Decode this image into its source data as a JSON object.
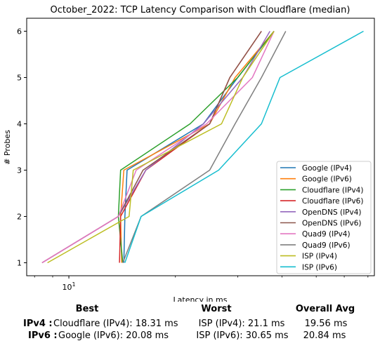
{
  "chart_data": {
    "type": "line",
    "title": "October_2022: TCP Latency Comparison with Cloudflare (median)",
    "xlabel": "Latency in ms",
    "ylabel": "# Probes",
    "x_scale": "log",
    "xlim": [
      7.6,
      73
    ],
    "ylim": [
      0.72,
      6.28
    ],
    "x_ticks": [
      {
        "value": 10,
        "label": "10^1"
      }
    ],
    "y_ticks": [
      1,
      2,
      3,
      4,
      5,
      6
    ],
    "grid": false,
    "legend_position": "lower right",
    "series": [
      {
        "name": "Google (IPv4)",
        "color": "#1f77b4",
        "points": [
          [
            14.3,
            1
          ],
          [
            14.4,
            2
          ],
          [
            14.6,
            3
          ],
          [
            24,
            4
          ],
          [
            30,
            5
          ],
          [
            38,
            6
          ]
        ]
      },
      {
        "name": "Google (IPv6)",
        "color": "#ff7f0e",
        "points": [
          [
            14.1,
            1
          ],
          [
            14.0,
            2
          ],
          [
            14.3,
            3
          ],
          [
            25,
            4
          ],
          [
            29.5,
            5
          ],
          [
            38,
            6
          ]
        ]
      },
      {
        "name": "Cloudflare (IPv4)",
        "color": "#2ca02c",
        "points": [
          [
            14.2,
            1
          ],
          [
            13.8,
            2
          ],
          [
            14.0,
            3
          ],
          [
            22,
            4
          ],
          [
            30,
            5
          ],
          [
            38,
            6
          ]
        ]
      },
      {
        "name": "Cloudflare (IPv6)",
        "color": "#d62728",
        "points": [
          [
            13.9,
            1
          ],
          [
            14.0,
            2
          ],
          [
            16.5,
            3
          ],
          [
            25,
            4
          ],
          [
            28.5,
            5
          ],
          [
            35,
            6
          ]
        ]
      },
      {
        "name": "OpenDNS (IPv4)",
        "color": "#9467bd",
        "points": [
          [
            8.4,
            1
          ],
          [
            13.8,
            2
          ],
          [
            16.5,
            3
          ],
          [
            24,
            4
          ],
          [
            31,
            5
          ],
          [
            37,
            6
          ]
        ]
      },
      {
        "name": "OpenDNS (IPv6)",
        "color": "#8c564b",
        "points": [
          [
            8.4,
            1
          ],
          [
            13.8,
            2
          ],
          [
            16.2,
            3
          ],
          [
            25,
            4
          ],
          [
            28.5,
            5
          ],
          [
            35,
            6
          ]
        ]
      },
      {
        "name": "Quad9 (IPv4)",
        "color": "#e377c2",
        "points": [
          [
            8.4,
            1
          ],
          [
            13.8,
            2
          ],
          [
            15.5,
            3
          ],
          [
            24.5,
            4
          ],
          [
            33,
            5
          ],
          [
            38,
            6
          ]
        ]
      },
      {
        "name": "Quad9 (IPv6)",
        "color": "#7f7f7f",
        "points": [
          [
            14.2,
            1
          ],
          [
            16.0,
            2
          ],
          [
            25,
            3
          ],
          [
            29.5,
            4
          ],
          [
            35,
            5
          ],
          [
            41,
            6
          ]
        ]
      },
      {
        "name": "ISP (IPv4)",
        "color": "#bcbd22",
        "points": [
          [
            8.7,
            1
          ],
          [
            14.8,
            2
          ],
          [
            15.2,
            3
          ],
          [
            27,
            4
          ],
          [
            31,
            5
          ],
          [
            38,
            6
          ]
        ]
      },
      {
        "name": "ISP (IPv6)",
        "color": "#17becf",
        "points": [
          [
            14.4,
            1
          ],
          [
            16.0,
            2
          ],
          [
            26.5,
            3
          ],
          [
            35,
            4
          ],
          [
            39.5,
            5
          ],
          [
            68,
            6
          ]
        ]
      }
    ]
  },
  "summary": {
    "headers": {
      "best": "Best",
      "worst": "Worst",
      "avg": "Overall Avg"
    },
    "rows": [
      {
        "label": "IPv4 :",
        "best": "Cloudflare (IPv4): 18.31 ms",
        "worst": "ISP (IPv4): 21.1 ms",
        "avg": "19.56 ms"
      },
      {
        "label": "IPv6 :",
        "best": "Google (IPv6): 20.08 ms",
        "worst": "ISP (IPv6): 30.65 ms",
        "avg": "20.84 ms"
      }
    ]
  }
}
